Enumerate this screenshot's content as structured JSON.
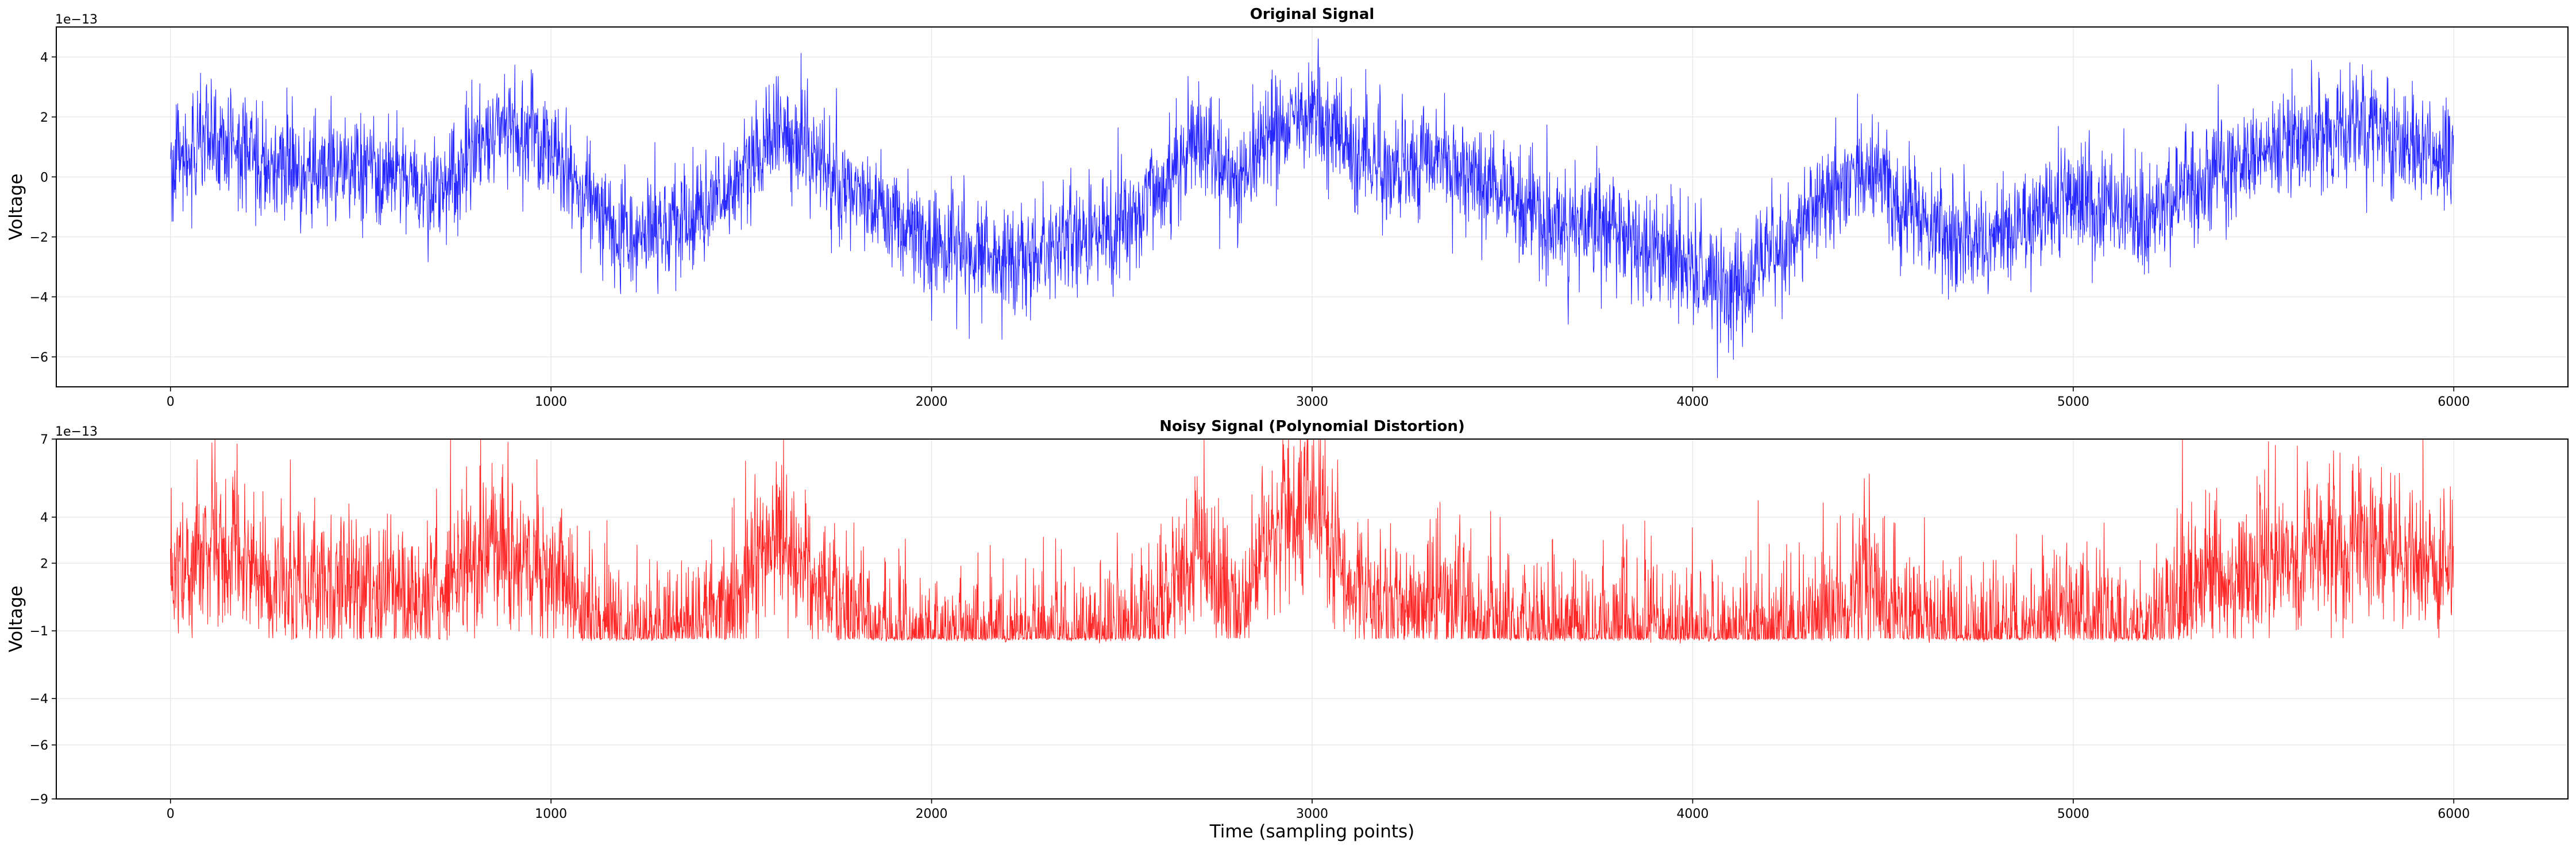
{
  "chart_data": [
    {
      "type": "line",
      "title": "Original Signal",
      "ylabel": "Voltage",
      "xlabel": "",
      "offset_text": "1e−13",
      "xlim": [
        -300,
        6300
      ],
      "ylim": [
        -7,
        5
      ],
      "xticks": [
        0,
        1000,
        2000,
        3000,
        4000,
        5000,
        6000
      ],
      "xtick_labels": [
        "0",
        "1000",
        "2000",
        "3000",
        "4000",
        "5000",
        "6000"
      ],
      "yticks": [
        -6,
        -4,
        -2,
        0,
        2,
        4
      ],
      "ytick_labels": [
        "−6",
        "−4",
        "−2",
        "0",
        "2",
        "4"
      ],
      "grid": true,
      "series": [
        {
          "color": "#0000ff",
          "n_points": 6000,
          "x_range": [
            0,
            5999
          ],
          "baseline_trend": {
            "x": [
              0,
              120,
              300,
              500,
              700,
              860,
              1000,
              1100,
              1200,
              1350,
              1500,
              1600,
              1700,
              1800,
              1900,
              2050,
              2200,
              2350,
              2500,
              2600,
              2700,
              2800,
              2900,
              3000,
              3100,
              3200,
              3350,
              3500,
              3650,
              3800,
              3900,
              4000,
              4100,
              4200,
              4300,
              4450,
              4550,
              4650,
              4750,
              4850,
              5000,
              5100,
              5200,
              5350,
              5500,
              5650,
              5750,
              5900,
              5999
            ],
            "y": [
              0.4,
              1.2,
              0.2,
              0.2,
              -0.5,
              1.8,
              1.0,
              -0.8,
              -2.0,
              -1.6,
              0.0,
              1.6,
              0.4,
              -0.6,
              -1.6,
              -2.4,
              -2.8,
              -2.2,
              -1.6,
              -0.4,
              1.2,
              0.0,
              1.6,
              2.0,
              1.0,
              0.0,
              0.6,
              -0.6,
              -1.6,
              -1.8,
              -2.4,
              -3.0,
              -4.0,
              -2.8,
              -1.2,
              0.2,
              -1.0,
              -1.8,
              -2.6,
              -1.6,
              -0.6,
              -1.2,
              -1.4,
              0.2,
              0.8,
              1.4,
              1.6,
              0.8,
              0.6
            ]
          },
          "noise_amplitude": 1.6,
          "observed_min": -6.7,
          "observed_max": 5.0
        }
      ]
    },
    {
      "type": "line",
      "title": "Noisy Signal (Polynomial Distortion)",
      "ylabel": "Voltage",
      "xlabel": "Time (sampling points)",
      "offset_text": "1e−13",
      "xlim": [
        -300,
        6300
      ],
      "ylim": [
        -9,
        7
      ],
      "y_scale": "nonlinear (polynomial-mapped ticks)",
      "xticks": [
        0,
        1000,
        2000,
        3000,
        4000,
        5000,
        6000
      ],
      "xtick_labels": [
        "0",
        "1000",
        "2000",
        "3000",
        "4000",
        "5000",
        "6000"
      ],
      "yticks": [
        -9,
        -6,
        -4,
        -1,
        2,
        4,
        7
      ],
      "ytick_labels": [
        "−9",
        "−6",
        "−4",
        "−1",
        "2",
        "4",
        "7"
      ],
      "grid": true,
      "series": [
        {
          "color": "#ff0000",
          "n_points": 6000,
          "x_range": [
            0,
            5999
          ],
          "floor_value": -1.3,
          "observed_max": 7.0,
          "baseline_trend": {
            "x": [
              0,
              120,
              300,
              500,
              700,
              860,
              1000,
              1100,
              1200,
              1350,
              1500,
              1600,
              1700,
              1800,
              1900,
              2050,
              2200,
              2350,
              2500,
              2600,
              2700,
              2800,
              2900,
              3000,
              3100,
              3200,
              3350,
              3500,
              3650,
              3800,
              3900,
              4000,
              4100,
              4200,
              4300,
              4450,
              4550,
              4650,
              4750,
              4850,
              5000,
              5100,
              5200,
              5350,
              5500,
              5650,
              5750,
              5900,
              5999
            ],
            "y": [
              1.2,
              2.4,
              0.8,
              0.6,
              0.4,
              2.6,
              1.4,
              -0.6,
              -1.1,
              -1.0,
              0.2,
              2.8,
              0.6,
              -0.4,
              -1.1,
              -1.2,
              -1.2,
              -1.1,
              -1.0,
              -0.2,
              2.2,
              0.0,
              2.8,
              3.6,
              1.0,
              -0.2,
              0.4,
              -0.6,
              -1.0,
              -1.1,
              -1.2,
              -1.3,
              -1.3,
              -1.2,
              -0.8,
              1.0,
              -0.6,
              -1.0,
              -1.2,
              -0.9,
              -0.2,
              -0.8,
              -0.9,
              0.8,
              1.6,
              2.4,
              2.6,
              1.8,
              1.2
            ]
          },
          "noise_amplitude": 2.4
        }
      ]
    }
  ]
}
